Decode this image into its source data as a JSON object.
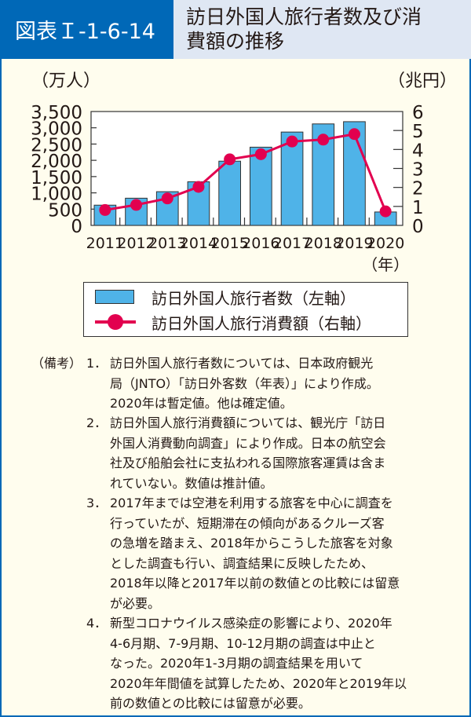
{
  "header": {
    "figure_number": "図表Ｉ-1-6-14",
    "title_line1": "訪日外国人旅行者数及び消",
    "title_line2": "費額の推移"
  },
  "colors": {
    "header_blue": "#0068b7",
    "title_bg": "#dfe7f3",
    "panel_bg": "#fffdee",
    "bar": "#4fb3e8",
    "line": "#e2004f"
  },
  "chart_data": {
    "type": "bar+line",
    "title": "訪日外国人旅行者数及び消費額の推移",
    "categories": [
      "2011",
      "2012",
      "2013",
      "2014",
      "2015",
      "2016",
      "2017",
      "2018",
      "2019",
      "2020"
    ],
    "xlabel": "（年）",
    "ylabel_left": "（万人）",
    "ylabel_right": "（兆円）",
    "ylim_left": [
      0,
      3500
    ],
    "ylim_right": [
      0,
      6
    ],
    "yticks_left": [
      "0",
      "500",
      "1,000",
      "1,500",
      "2,000",
      "2,500",
      "3,000",
      "3,500"
    ],
    "yticks_right": [
      "0",
      "1",
      "2",
      "3",
      "4",
      "5",
      "6"
    ],
    "series": [
      {
        "name": "訪日外国人旅行者数（左軸）",
        "type": "bar",
        "axis": "left",
        "values": [
          622,
          836,
          1036,
          1341,
          1974,
          2404,
          2869,
          3119,
          3188,
          412
        ]
      },
      {
        "name": "訪日外国人旅行消費額（右軸）",
        "type": "line",
        "axis": "right",
        "values": [
          0.81,
          1.08,
          1.42,
          2.03,
          3.48,
          3.75,
          4.42,
          4.52,
          4.81,
          0.74
        ]
      }
    ],
    "legend_position": "bottom",
    "grid": false
  },
  "legend": {
    "bar_label": "訪日外国人旅行者数（左軸）",
    "line_label": "訪日外国人旅行消費額（右軸）"
  },
  "notes": {
    "label": "（備考）",
    "items": [
      {
        "num": "1．",
        "text": "訪日外国人旅行者数については、日本政府観光\n局（JNTO）「訪日外客数（年表）」により作成。\n2020年は暫定値。他は確定値。"
      },
      {
        "num": "2．",
        "text": "訪日外国人旅行消費額については、観光庁「訪日\n外国人消費動向調査」により作成。日本の航空会\n社及び船舶会社に支払われる国際旅客運賃は含ま\nれていない。数値は推計値。"
      },
      {
        "num": "3．",
        "text": "2017年までは空港を利用する旅客を中心に調査を\n行っていたが、短期滞在の傾向があるクルーズ客\nの急増を踏まえ、2018年からこうした旅客を対象\nとした調査も行い、調査結果に反映したため、\n2018年以降と2017年以前の数値との比較には留意\nが必要。"
      },
      {
        "num": "4．",
        "text": "新型コロナウイルス感染症の影響により、2020年\n 4-6月期、7-9月期、10-12月期の調査は中止と\nなった。2020年1-3月期の調査結果を用いて\n2020年年間値を試算したため、2020年と2019年以\n前の数値との比較には留意が必要。"
      }
    ]
  }
}
